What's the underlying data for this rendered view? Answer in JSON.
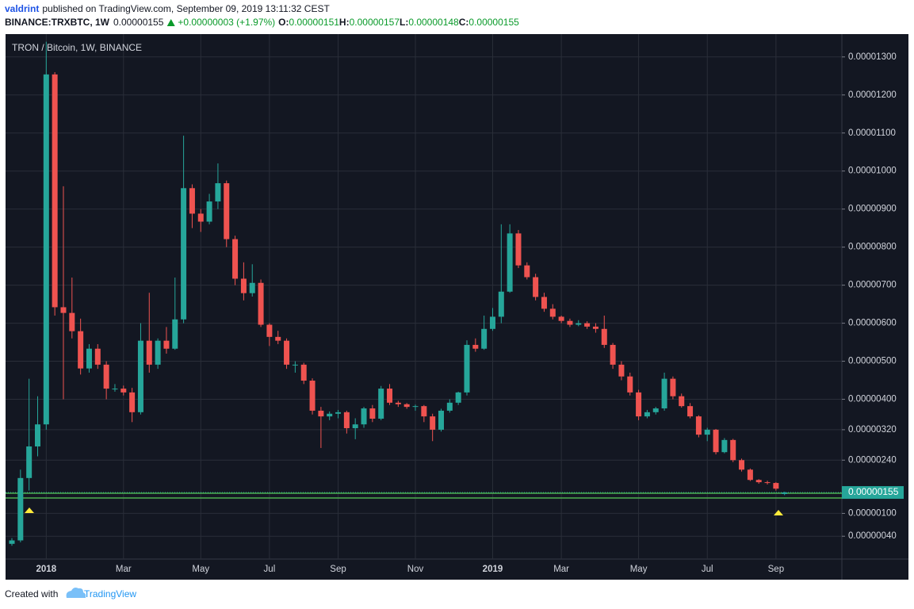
{
  "header": {
    "author": "valdrint",
    "published": "published on TradingView.com, September 09, 2019 13:11:32 CEST",
    "symbol": "BINANCE:TRXBTC, 1W",
    "price": "0.00000155",
    "change": "+0.00000003 (+1.97%)",
    "o_label": "O:",
    "o": "0.00000151",
    "h_label": "H:",
    "h": "0.00000157",
    "l_label": "L:",
    "l": "0.00000148",
    "c_label": "C:",
    "c": "0.00000155"
  },
  "chart_data": {
    "type": "candlestick",
    "title": "TRON / Bitcoin, 1W, BINANCE",
    "categories": [
      null,
      null,
      null,
      null,
      "2018",
      null,
      null,
      null,
      null,
      null,
      null,
      null,
      null,
      "Mar",
      null,
      null,
      null,
      null,
      null,
      null,
      null,
      null,
      "May",
      null,
      null,
      null,
      null,
      null,
      null,
      null,
      "Jul",
      null,
      null,
      null,
      null,
      null,
      null,
      null,
      "Sep",
      null,
      null,
      null,
      null,
      null,
      null,
      null,
      null,
      "Nov",
      null,
      null,
      null,
      null,
      null,
      null,
      null,
      null,
      "2019",
      null,
      null,
      null,
      null,
      null,
      null,
      null,
      "Mar",
      null,
      null,
      null,
      null,
      null,
      null,
      null,
      null,
      "May",
      null,
      null,
      null,
      null,
      null,
      null,
      null,
      "Jul",
      null,
      null,
      null,
      null,
      null,
      null,
      null,
      "Sep",
      null
    ],
    "open": [
      2e-07,
      2.9e-07,
      1.93e-06,
      2.76e-06,
      3.34e-06,
      1.254e-05,
      6.42e-06,
      6.27e-06,
      5.79e-06,
      4.81e-06,
      5.33e-06,
      4.91e-06,
      4.28e-06,
      4.28e-06,
      4.18e-06,
      3.66e-06,
      5.54e-06,
      4.91e-06,
      5.54e-06,
      5.33e-06,
      6.1e-06,
      9.55e-06,
      8.88e-06,
      8.67e-06,
      9.2e-06,
      9.68e-06,
      8.21e-06,
      7.17e-06,
      6.79e-06,
      7.06e-06,
      5.96e-06,
      5.64e-06,
      5.54e-06,
      4.91e-06,
      4.91e-06,
      4.49e-06,
      3.7e-06,
      3.55e-06,
      3.62e-06,
      3.66e-06,
      3.24e-06,
      3.34e-06,
      3.76e-06,
      3.49e-06,
      4.28e-06,
      3.91e-06,
      3.87e-06,
      3.8e-06,
      3.82e-06,
      3.55e-06,
      3.2e-06,
      3.7e-06,
      3.91e-06,
      4.18e-06,
      5.43e-06,
      5.33e-06,
      5.85e-06,
      6.17e-06,
      6.83e-06,
      8.36e-06,
      7.52e-06,
      7.21e-06,
      6.69e-06,
      6.38e-06,
      6.17e-06,
      6.06e-06,
      5.96e-06,
      6e-06,
      5.91e-06,
      5.85e-06,
      5.43e-06,
      4.91e-06,
      4.6e-06,
      4.18e-06,
      3.55e-06,
      3.66e-06,
      3.76e-06,
      4.54e-06,
      4.08e-06,
      3.82e-06,
      3.55e-06,
      3.07e-06,
      3.2e-06,
      2.61e-06,
      2.93e-06,
      2.4e-06,
      2.15e-06,
      1.88e-06,
      1.82e-06,
      1.8e-06,
      1.51e-06
    ],
    "high": [
      3.5e-07,
      2.15e-06,
      4.54e-06,
      4.08e-06,
      1.34e-05,
      1.26e-05,
      9.6e-06,
      7.2e-06,
      6.12e-06,
      5.45e-06,
      5.45e-06,
      5e-06,
      4.4e-06,
      4.36e-06,
      4.3e-06,
      6e-06,
      6.8e-06,
      5.6e-06,
      5.9e-06,
      7.2e-06,
      1.093e-05,
      9.65e-06,
      9e-06,
      9.4e-06,
      1.02e-05,
      9.75e-06,
      8.3e-06,
      7.6e-06,
      7.55e-06,
      7.15e-06,
      6e-06,
      5.8e-06,
      5.6e-06,
      5e-06,
      4.96e-06,
      4.55e-06,
      3.8e-06,
      3.68e-06,
      3.72e-06,
      3.7e-06,
      3.5e-06,
      3.8e-06,
      3.85e-06,
      4.35e-06,
      4.4e-06,
      3.96e-06,
      3.9e-06,
      3.86e-06,
      3.85e-06,
      3.62e-06,
      3.75e-06,
      4e-06,
      4.2e-06,
      5.55e-06,
      5.6e-06,
      6.2e-06,
      6.4e-06,
      8.6e-06,
      8.6e-06,
      8.45e-06,
      7.6e-06,
      7.3e-06,
      6.8e-06,
      6.5e-06,
      6.2e-06,
      6.12e-06,
      6.08e-06,
      6.05e-06,
      6e-06,
      6.2e-06,
      5.48e-06,
      5e-06,
      4.7e-06,
      4.25e-06,
      3.72e-06,
      3.8e-06,
      4.7e-06,
      4.6e-06,
      4.15e-06,
      3.9e-06,
      3.58e-06,
      3.25e-06,
      3.22e-06,
      2.98e-06,
      2.96e-06,
      2.44e-06,
      2.18e-06,
      1.9e-06,
      1.86e-06,
      1.82e-06,
      1.57e-06
    ],
    "low": [
      1.5e-07,
      2.4e-07,
      1.6e-06,
      2.5e-06,
      3.2e-06,
      6.2e-06,
      4e-06,
      5.6e-06,
      4.65e-06,
      4.7e-06,
      4.8e-06,
      4e-06,
      4.2e-06,
      4.1e-06,
      3.4e-06,
      3.6e-06,
      4.7e-06,
      4.8e-06,
      5.2e-06,
      5.3e-06,
      6e-06,
      8.5e-06,
      8.4e-06,
      8.6e-06,
      9e-06,
      8e-06,
      7e-06,
      6.6e-06,
      6.7e-06,
      5.9e-06,
      5.4e-06,
      5.45e-06,
      4.8e-06,
      4.7e-06,
      4.4e-06,
      3.6e-06,
      2.72e-06,
      3.45e-06,
      3.5e-06,
      3.1e-06,
      2.95e-06,
      3.25e-06,
      3.4e-06,
      3.45e-06,
      3.85e-06,
      3.8e-06,
      3.75e-06,
      3.7e-06,
      3.4e-06,
      2.9e-06,
      3.15e-06,
      3.65e-06,
      3.85e-06,
      4.1e-06,
      5.25e-06,
      5.3e-06,
      5.8e-06,
      6e-06,
      6.8e-06,
      7.45e-06,
      7.15e-06,
      6.6e-06,
      6.3e-06,
      6.1e-06,
      6e-06,
      5.9e-06,
      5.92e-06,
      5.85e-06,
      5.75e-06,
      5.35e-06,
      4.8e-06,
      4.5e-06,
      4.1e-06,
      3.45e-06,
      3.5e-06,
      3.6e-06,
      3.7e-06,
      4e-06,
      3.78e-06,
      3.5e-06,
      3e-06,
      2.9e-06,
      2.55e-06,
      2.58e-06,
      2.35e-06,
      2.1e-06,
      1.85e-06,
      1.78e-06,
      1.76e-06,
      1.6e-06,
      1.48e-06
    ],
    "close": [
      2.9e-07,
      1.93e-06,
      2.76e-06,
      3.34e-06,
      1.254e-05,
      6.42e-06,
      6.27e-06,
      5.79e-06,
      4.81e-06,
      5.33e-06,
      4.91e-06,
      4.28e-06,
      4.28e-06,
      4.18e-06,
      3.66e-06,
      5.54e-06,
      4.91e-06,
      5.54e-06,
      5.33e-06,
      6.1e-06,
      9.55e-06,
      8.88e-06,
      8.67e-06,
      9.2e-06,
      9.68e-06,
      8.21e-06,
      7.17e-06,
      6.79e-06,
      7.06e-06,
      5.96e-06,
      5.64e-06,
      5.54e-06,
      4.91e-06,
      4.91e-06,
      4.49e-06,
      3.7e-06,
      3.55e-06,
      3.62e-06,
      3.66e-06,
      3.24e-06,
      3.34e-06,
      3.76e-06,
      3.49e-06,
      4.28e-06,
      3.91e-06,
      3.87e-06,
      3.8e-06,
      3.82e-06,
      3.55e-06,
      3.2e-06,
      3.7e-06,
      3.91e-06,
      4.18e-06,
      5.43e-06,
      5.33e-06,
      5.85e-06,
      6.17e-06,
      6.83e-06,
      8.36e-06,
      7.52e-06,
      7.21e-06,
      6.69e-06,
      6.38e-06,
      6.17e-06,
      6.06e-06,
      5.96e-06,
      6e-06,
      5.91e-06,
      5.85e-06,
      5.43e-06,
      4.91e-06,
      4.6e-06,
      4.18e-06,
      3.55e-06,
      3.66e-06,
      3.76e-06,
      4.54e-06,
      4.08e-06,
      3.82e-06,
      3.55e-06,
      3.07e-06,
      3.2e-06,
      2.61e-06,
      2.93e-06,
      2.4e-06,
      2.15e-06,
      1.88e-06,
      1.82e-06,
      1.8e-06,
      1.65e-06,
      1.55e-06
    ],
    "up_color": "#26a69a",
    "down_color": "#ef5350",
    "ylim": [
      -2e-07,
      1.36e-05
    ],
    "yticks": [
      {
        "value": 1.3e-05,
        "label": "0.00001300"
      },
      {
        "value": 1.2e-05,
        "label": "0.00001200"
      },
      {
        "value": 1.1e-05,
        "label": "0.00001100"
      },
      {
        "value": 1e-05,
        "label": "0.00001000"
      },
      {
        "value": 9e-06,
        "label": "0.00000900"
      },
      {
        "value": 8e-06,
        "label": "0.00000800"
      },
      {
        "value": 7e-06,
        "label": "0.00000700"
      },
      {
        "value": 6e-06,
        "label": "0.00000600"
      },
      {
        "value": 5e-06,
        "label": "0.00000500"
      },
      {
        "value": 4e-06,
        "label": "0.00000400"
      },
      {
        "value": 3.2e-06,
        "label": "0.00000320"
      },
      {
        "value": 2.4e-06,
        "label": "0.00000240"
      },
      {
        "value": 1e-06,
        "label": "0.00000100"
      },
      {
        "value": 4e-07,
        "label": "0.00000040"
      }
    ],
    "last_price_label": "0.00000155",
    "grid": true
  },
  "footer": {
    "created_with": "Created with",
    "brand": "TradingView"
  }
}
